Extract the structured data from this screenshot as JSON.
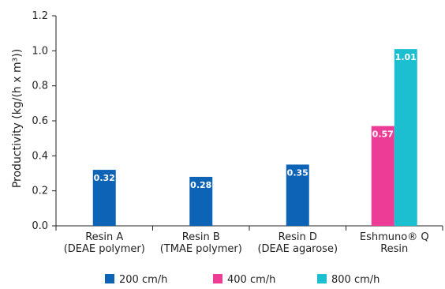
{
  "chart_data": {
    "type": "bar",
    "ylabel": "Productivity (kg/(h x m³))",
    "ylim": [
      0,
      1.2
    ],
    "yticks": [
      "0.0",
      "0.2",
      "0.4",
      "0.6",
      "0.8",
      "1.0",
      "1.2"
    ],
    "categories": [
      [
        "Resin A",
        "(DEAE polymer)"
      ],
      [
        "Resin B",
        "(TMAE polymer)"
      ],
      [
        "Resin D",
        "(DEAE agarose)"
      ],
      [
        "Eshmuno® Q",
        "Resin"
      ]
    ],
    "series": [
      {
        "name": "200 cm/h",
        "color": "#0d63b5",
        "values": [
          0.32,
          0.28,
          0.35,
          null
        ],
        "labels": [
          "0.32",
          "0.28",
          "0.35",
          null
        ]
      },
      {
        "name": "400 cm/h",
        "color": "#ec3c96",
        "values": [
          null,
          null,
          null,
          0.57
        ],
        "labels": [
          null,
          null,
          null,
          "0.57"
        ]
      },
      {
        "name": "800 cm/h",
        "color": "#1cbfcf",
        "values": [
          null,
          null,
          null,
          1.01
        ],
        "labels": [
          null,
          null,
          null,
          "1.01"
        ]
      }
    ],
    "grid": false,
    "legend": "bottom"
  }
}
